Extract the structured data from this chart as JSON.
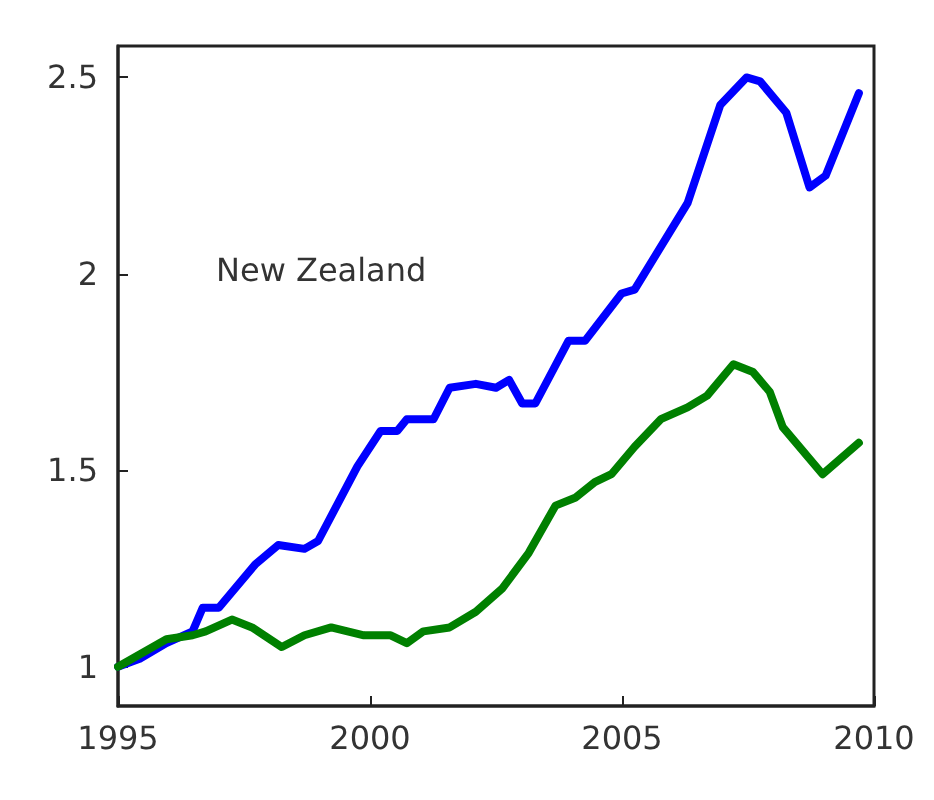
{
  "chart_data": {
    "type": "line",
    "annotations": [
      "New Zealand"
    ],
    "xlim": [
      1995,
      2010
    ],
    "xticks": [
      1995,
      2000,
      2005,
      2010
    ],
    "ylim": [
      0.9,
      2.58
    ],
    "yticks": [
      1,
      1.5,
      2,
      2.5
    ],
    "grid": false,
    "marker": "none",
    "line_style": "solid",
    "series": [
      {
        "color": "#0000ff",
        "x": [
          1995,
          1995.43,
          1995.96,
          1996.48,
          1996.68,
          1997.0,
          1997.72,
          1998.18,
          1998.7,
          1998.97,
          1999.75,
          2000.21,
          2000.54,
          2000.73,
          2001.26,
          2001.58,
          2002.1,
          2002.5,
          2002.76,
          2003.02,
          2003.28,
          2003.94,
          2004.27,
          2004.99,
          2005.25,
          2006.3,
          2006.95,
          2007.47,
          2007.74,
          2008.26,
          2008.72,
          2009.04,
          2009.7
        ],
        "values": [
          1.0,
          1.02,
          1.06,
          1.09,
          1.15,
          1.15,
          1.26,
          1.31,
          1.3,
          1.32,
          1.51,
          1.6,
          1.6,
          1.63,
          1.63,
          1.71,
          1.72,
          1.71,
          1.73,
          1.67,
          1.67,
          1.83,
          1.83,
          1.95,
          1.96,
          2.18,
          2.43,
          2.5,
          2.49,
          2.41,
          2.22,
          2.25,
          2.46
        ]
      },
      {
        "color": "#008000",
        "x": [
          1995,
          1995.96,
          1996.48,
          1996.74,
          1997.26,
          1997.66,
          1998.25,
          1998.7,
          1999.23,
          1999.88,
          2000.41,
          2000.73,
          2001.06,
          2001.58,
          2002.1,
          2002.63,
          2003.15,
          2003.68,
          2004.07,
          2004.46,
          2004.79,
          2005.25,
          2005.77,
          2006.3,
          2006.69,
          2007.21,
          2007.6,
          2007.93,
          2008.19,
          2008.98,
          2009.7
        ],
        "values": [
          1.0,
          1.07,
          1.08,
          1.09,
          1.12,
          1.1,
          1.05,
          1.08,
          1.1,
          1.08,
          1.08,
          1.06,
          1.09,
          1.1,
          1.14,
          1.2,
          1.29,
          1.41,
          1.43,
          1.47,
          1.49,
          1.56,
          1.63,
          1.66,
          1.69,
          1.77,
          1.75,
          1.7,
          1.61,
          1.49,
          1.57
        ]
      }
    ]
  }
}
